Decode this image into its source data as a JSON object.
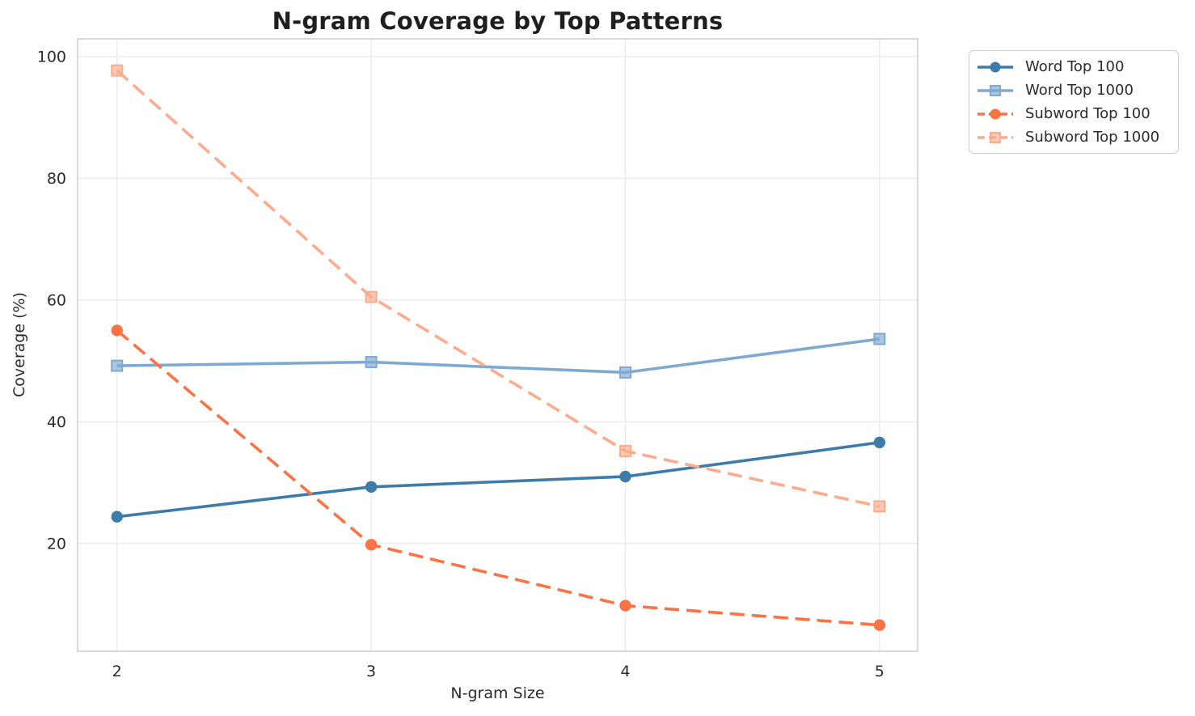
{
  "figure": {
    "background_color": "#ffffff",
    "grid_color": "#e7e7e7",
    "spine_color": "#c9c9c9",
    "text_color": "#2b2b2b",
    "title_color": "#1f1f1f"
  },
  "chart_data": {
    "type": "line",
    "title": "N-gram Coverage by Top Patterns",
    "xlabel": "N-gram Size",
    "ylabel": "Coverage (%)",
    "x": [
      2,
      3,
      4,
      5
    ],
    "x_ticks": [
      "2",
      "3",
      "4",
      "5"
    ],
    "y_ticks": [
      "20",
      "40",
      "60",
      "80",
      "100"
    ],
    "y_tick_values": [
      20,
      40,
      60,
      80,
      100
    ],
    "xlim": [
      1.845,
      5.15
    ],
    "ylim": [
      2.3,
      102.9
    ],
    "grid": true,
    "legend_position": "outside-top-right",
    "series": [
      {
        "name": "Word Top 100",
        "values": [
          24.4,
          29.3,
          31.0,
          36.6
        ],
        "color": "#3d7ba9",
        "line_style": "solid",
        "marker": "circle"
      },
      {
        "name": "Word Top 1000",
        "values": [
          49.2,
          49.8,
          48.1,
          53.6
        ],
        "color": "#7ea9d0",
        "line_style": "solid",
        "marker": "square"
      },
      {
        "name": "Subword Top 100",
        "values": [
          55.0,
          19.8,
          9.8,
          6.6
        ],
        "color": "#fb7244",
        "line_style": "dashed",
        "marker": "circle"
      },
      {
        "name": "Subword Top 1000",
        "values": [
          97.7,
          60.5,
          35.2,
          26.1
        ],
        "color": "#fcab8d",
        "line_style": "dashed",
        "marker": "square"
      }
    ]
  }
}
